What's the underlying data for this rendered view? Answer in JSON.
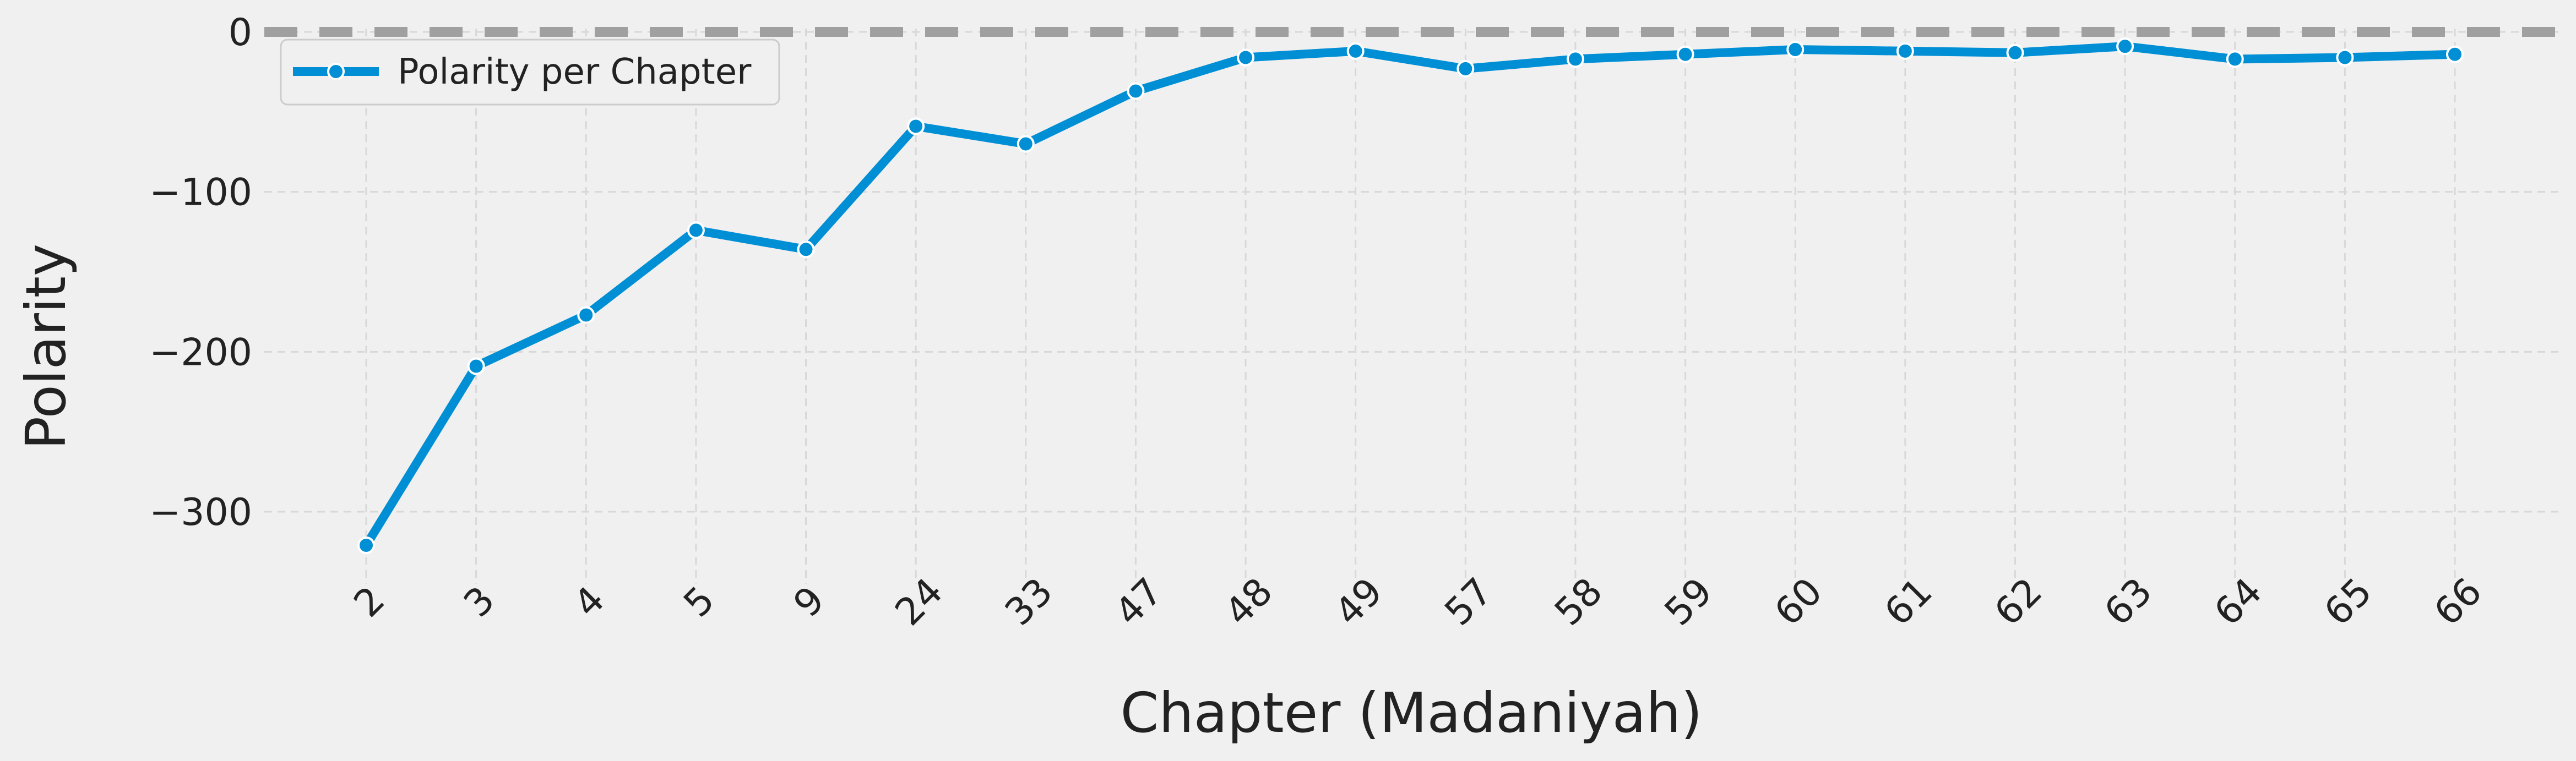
{
  "chart_data": {
    "type": "line",
    "title": "",
    "xlabel": "Chapter (Madaniyah)",
    "ylabel": "Polarity",
    "categories": [
      "2",
      "3",
      "4",
      "5",
      "9",
      "24",
      "33",
      "47",
      "48",
      "49",
      "57",
      "58",
      "59",
      "60",
      "61",
      "62",
      "63",
      "64",
      "65",
      "66"
    ],
    "series": [
      {
        "name": "Polarity per Chapter",
        "color": "#008fd5",
        "values": [
          -321,
          -209,
          -177,
          -124,
          -136,
          -59,
          -70,
          -37,
          -16,
          -12,
          -23,
          -17,
          -14,
          -11,
          -12,
          -13,
          -9,
          -17,
          -16,
          -14
        ]
      }
    ],
    "yticks": [
      0,
      -100,
      -200,
      -300
    ],
    "ytick_labels": [
      "0",
      "−100",
      "−200",
      "−300"
    ],
    "ylim": [
      -345,
      2
    ],
    "reference_line": {
      "y": 0,
      "style": "dashed",
      "color": "#a0a0a0"
    },
    "grid": true,
    "legend_position": "top-left",
    "xtick_rotation": 45
  }
}
